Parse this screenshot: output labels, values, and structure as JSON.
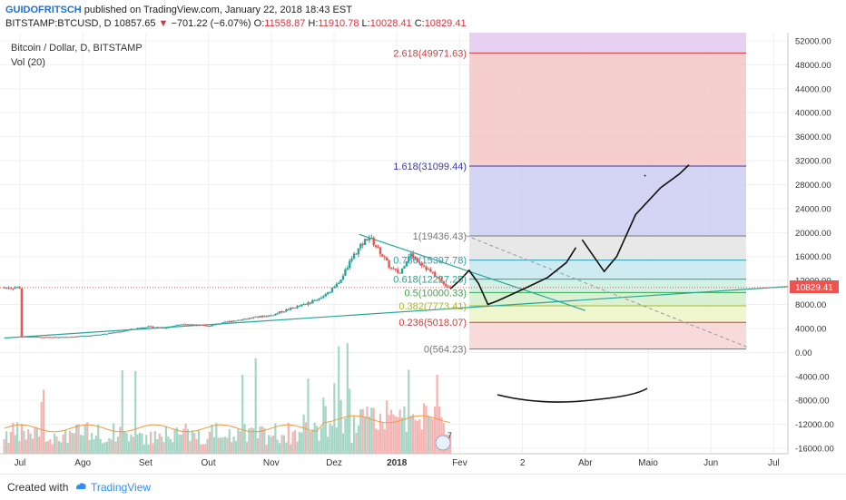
{
  "header": {
    "author": "GUIDOFRITSCH",
    "published": "published on TradingView.com, January 22, 2018 18:43 EST"
  },
  "ohlc": {
    "symbol": "BITSTAMP:BTCUSD, D",
    "last": "10857.65",
    "change": "−701.22 (−6.07%)",
    "o_label": "O:",
    "o": "11558.87",
    "h_label": "H:",
    "h": "11910.78",
    "l_label": "L:",
    "l": "10028.41",
    "c_label": "C:",
    "c": "10829.41"
  },
  "chart_title": "Bitcoin / Dollar, D, BITSTAMP",
  "volume_label": "Vol (20)",
  "price_tag": "10829.41",
  "footer": {
    "created": "Created with",
    "brand": "TradingView"
  },
  "colors": {
    "up": "#26a69a",
    "down": "#ef5350",
    "accent": "#2f8ef0"
  },
  "chart_data": {
    "type": "candlestick",
    "x_ticks": [
      "Jul",
      "Ago",
      "Set",
      "Out",
      "Nov",
      "Dez",
      "2018",
      "Fev",
      "2",
      "Abr",
      "Maio",
      "Jun",
      "Jul"
    ],
    "y_ticks": [
      "52000.00",
      "48000.00",
      "44000.00",
      "40000.00",
      "36000.00",
      "32000.00",
      "28000.00",
      "24000.00",
      "20000.00",
      "16000.00",
      "12000.00",
      "8000.00",
      "4000.00",
      "0.00",
      "-4000.00",
      "-8000.00",
      "-12000.00",
      "-16000.00"
    ],
    "ylim": [
      -17000,
      54000
    ],
    "last_price": 10829.41,
    "price_path": [
      [
        0,
        2600
      ],
      [
        0.5,
        2500
      ],
      [
        1,
        2700
      ],
      [
        1.5,
        3300
      ],
      [
        2,
        4300
      ],
      [
        2.3,
        4100
      ],
      [
        2.6,
        4800
      ],
      [
        3,
        4400
      ],
      [
        3.4,
        5300
      ],
      [
        3.7,
        5800
      ],
      [
        4,
        6200
      ],
      [
        4.3,
        7300
      ],
      [
        4.6,
        8200
      ],
      [
        4.9,
        9800
      ],
      [
        5.1,
        12000
      ],
      [
        5.3,
        16000
      ],
      [
        5.55,
        19400
      ],
      [
        5.75,
        16500
      ],
      [
        5.9,
        14000
      ],
      [
        6.05,
        13200
      ],
      [
        6.2,
        16500
      ],
      [
        6.35,
        15200
      ],
      [
        6.55,
        13300
      ],
      [
        6.75,
        11500
      ],
      [
        6.85,
        10830
      ]
    ],
    "fib_levels": [
      {
        "ratio": "2.618",
        "value": 49971.63,
        "label": "2.618(49971.63)",
        "color": "#d63b3b"
      },
      {
        "ratio": "1.618",
        "value": 31099.44,
        "label": "1.618(31099.44)",
        "color": "#3a3aa8"
      },
      {
        "ratio": "1",
        "value": 19436.43,
        "label": "1(19436.43)",
        "color": "#777777"
      },
      {
        "ratio": "0.786",
        "value": 15397.78,
        "label": "0.786(15397.78)",
        "color": "#2a9db5"
      },
      {
        "ratio": "0.618",
        "value": 12227.25,
        "label": "0.618(12227.25)",
        "color": "#2aa58a"
      },
      {
        "ratio": "0.5",
        "value": 10000.33,
        "label": "0.5(10000.33)",
        "color": "#3aa84a"
      },
      {
        "ratio": "0.382",
        "value": 7773.41,
        "label": "0.382(7773.41)",
        "color": "#a8b82a"
      },
      {
        "ratio": "0.236",
        "value": 5018.07,
        "label": "0.236(5018.07)",
        "color": "#d63b3b"
      },
      {
        "ratio": "0",
        "value": 564.23,
        "label": "0(564.23)",
        "color": "#777777"
      }
    ],
    "fib_band_colors": [
      "#e2c9f0",
      "#f5c6c6",
      "#cccdf2",
      "#e4e4e4",
      "#c5e8f0",
      "#c9ede2",
      "#d3efcc",
      "#edf5c6",
      "#f7d3d3"
    ]
  }
}
